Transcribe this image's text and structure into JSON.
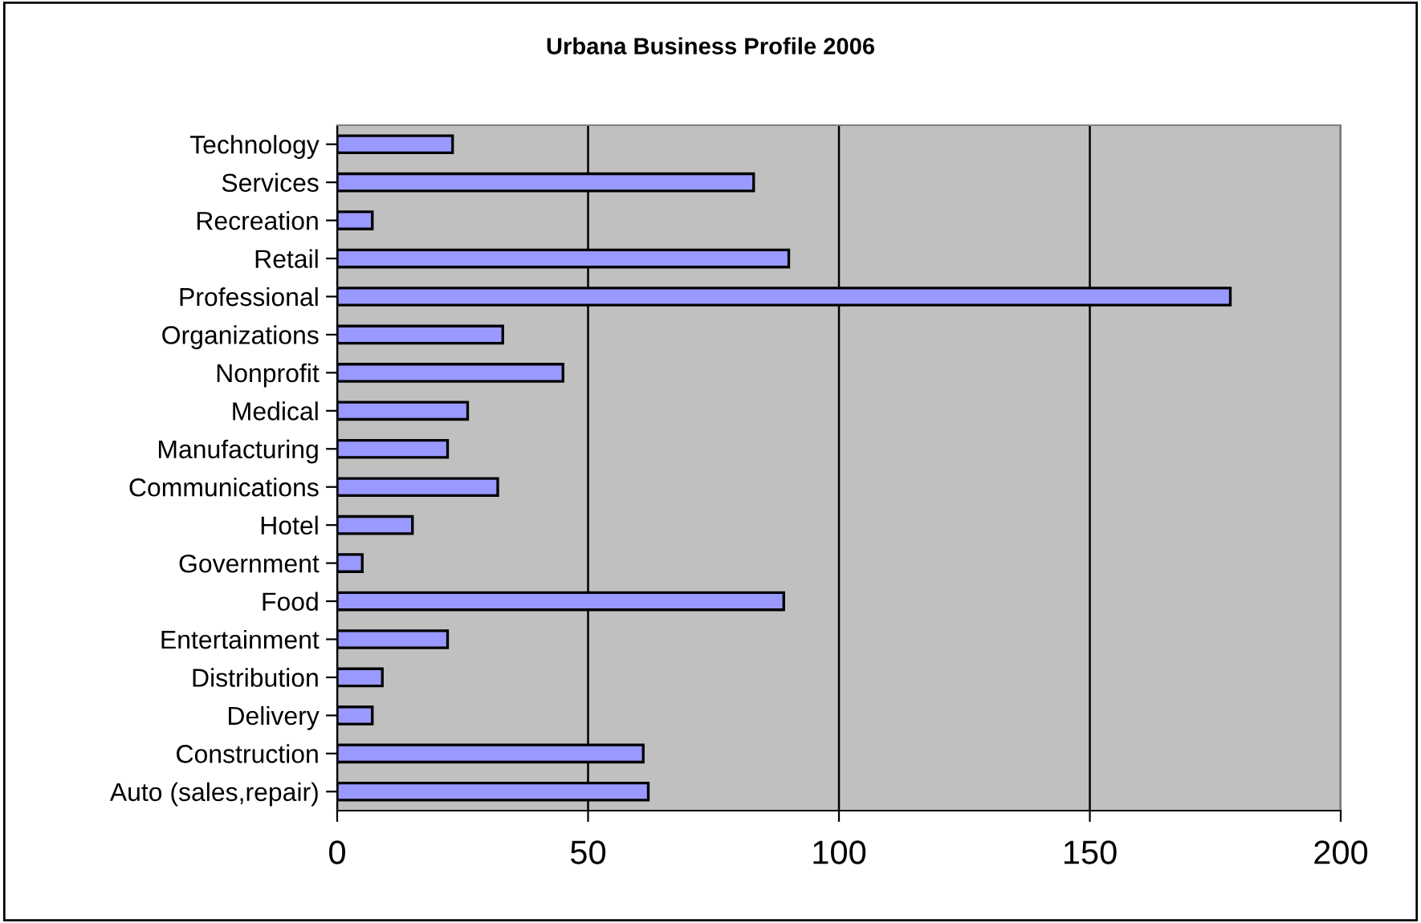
{
  "chart_data": {
    "type": "bar",
    "orientation": "horizontal",
    "title": "Urbana Business Profile 2006",
    "categories": [
      "Technology",
      "Services",
      "Recreation",
      "Retail",
      "Professional",
      "Organizations",
      "Nonprofit",
      "Medical",
      "Manufacturing",
      "Communications",
      "Hotel",
      "Government",
      "Food",
      "Entertainment",
      "Distribution",
      "Delivery",
      "Construction",
      "Auto (sales,repair)"
    ],
    "values": [
      23,
      83,
      7,
      90,
      178,
      33,
      45,
      26,
      22,
      32,
      15,
      5,
      89,
      22,
      9,
      7,
      61,
      62
    ],
    "color": "#9999ff",
    "xlim": [
      0,
      200
    ],
    "xticks": [
      0,
      50,
      100,
      150,
      200
    ],
    "grid": "x",
    "legend": false
  }
}
